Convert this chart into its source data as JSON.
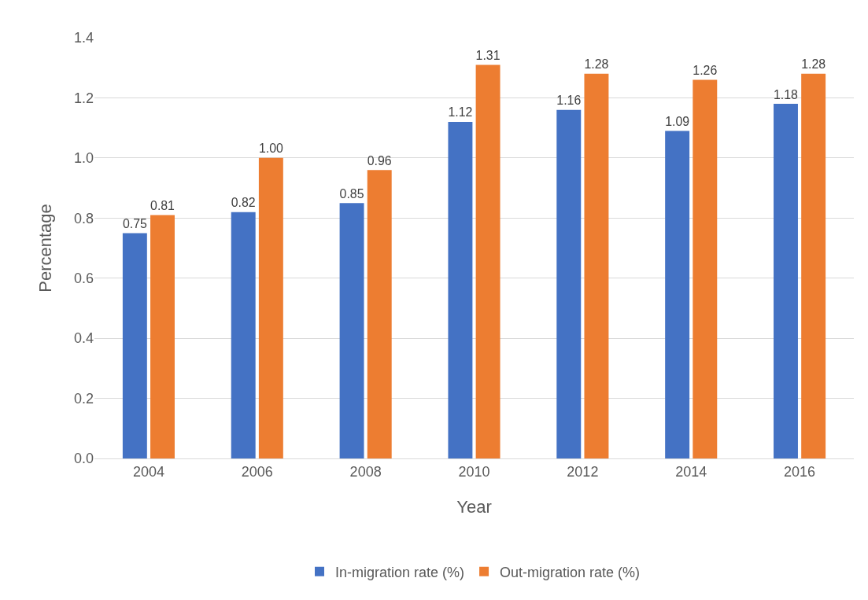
{
  "chart_data": {
    "type": "bar",
    "xlabel": "Year",
    "ylabel": "Percentage",
    "categories": [
      "2004",
      "2006",
      "2008",
      "2010",
      "2012",
      "2014",
      "2016"
    ],
    "series": [
      {
        "name": "In-migration rate (%)",
        "color": "#4472c4",
        "values": [
          0.75,
          0.82,
          0.85,
          1.12,
          1.16,
          1.09,
          1.18
        ],
        "value_labels": [
          "0.75",
          "0.82",
          "0.85",
          "1.12",
          "1.16",
          "1.09",
          "1.18"
        ]
      },
      {
        "name": "Out-migration rate (%)",
        "color": "#ed7d31",
        "values": [
          0.81,
          1.0,
          0.96,
          1.31,
          1.28,
          1.26,
          1.28
        ],
        "value_labels": [
          "0.81",
          "1.00",
          "0.96",
          "1.31",
          "1.28",
          "1.26",
          "1.28"
        ]
      }
    ],
    "ylim": [
      0,
      1.4
    ],
    "yticks": [
      {
        "value": 0,
        "label": "0.0"
      },
      {
        "value": 0.2,
        "label": "0.2"
      },
      {
        "value": 0.4,
        "label": "0.4"
      },
      {
        "value": 0.6,
        "label": "0.6"
      },
      {
        "value": 0.8,
        "label": "0.8"
      },
      {
        "value": 1,
        "label": "1.0"
      },
      {
        "value": 1.2,
        "label": "1.2"
      },
      {
        "value": 1.4,
        "label": "1.4"
      }
    ],
    "grid": "y",
    "legend": "bottom"
  }
}
